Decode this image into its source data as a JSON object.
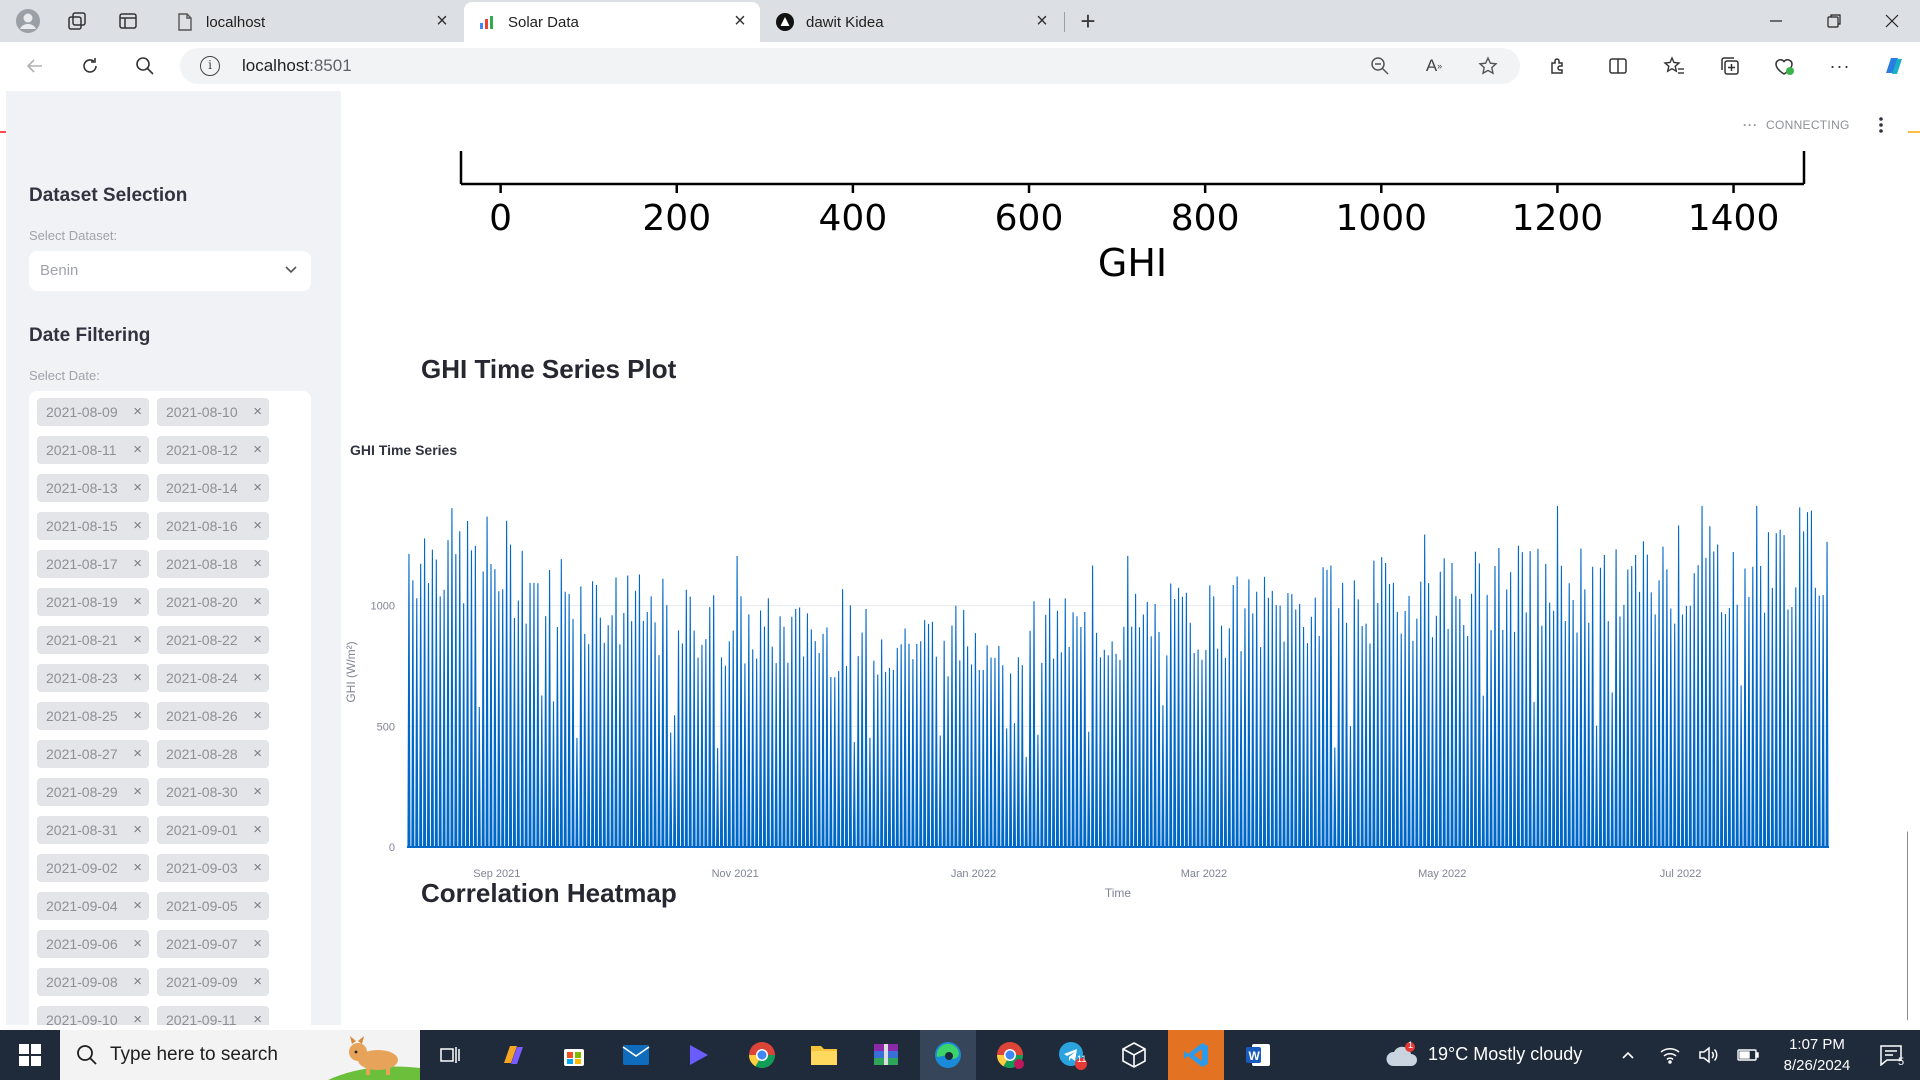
{
  "browser": {
    "tabs": [
      {
        "title": "localhost",
        "icon": "page-icon"
      },
      {
        "title": "Solar Data",
        "icon": "chart-favicon-icon"
      },
      {
        "title": "dawit Kidea",
        "icon": "app-favicon-icon"
      }
    ],
    "url_host": "localhost",
    "url_port": ":8501"
  },
  "sidebar": {
    "dataset_heading": "Dataset Selection",
    "dataset_label": "Select Dataset:",
    "dataset_value": "Benin",
    "date_heading": "Date Filtering",
    "date_label": "Select Date:",
    "dates": [
      "2021-08-09",
      "2021-08-10",
      "2021-08-11",
      "2021-08-12",
      "2021-08-13",
      "2021-08-14",
      "2021-08-15",
      "2021-08-16",
      "2021-08-17",
      "2021-08-18",
      "2021-08-19",
      "2021-08-20",
      "2021-08-21",
      "2021-08-22",
      "2021-08-23",
      "2021-08-24",
      "2021-08-25",
      "2021-08-26",
      "2021-08-27",
      "2021-08-28",
      "2021-08-29",
      "2021-08-30",
      "2021-08-31",
      "2021-09-01",
      "2021-09-02",
      "2021-09-03",
      "2021-09-04",
      "2021-09-05",
      "2021-09-06",
      "2021-09-07",
      "2021-09-08",
      "2021-09-09",
      "2021-09-10",
      "2021-09-11"
    ],
    "chip_remove": "×"
  },
  "main": {
    "status_text": "CONNECTING",
    "time_series_heading": "GHI Time Series Plot",
    "heatmap_heading": "Correlation Heatmap"
  },
  "chart_data": [
    {
      "type": "histogram-axis",
      "xlabel": "GHI",
      "ticks": [
        0,
        200,
        400,
        600,
        800,
        1000,
        1200,
        1400
      ],
      "xlim": [
        -45,
        1480
      ]
    },
    {
      "type": "line",
      "title": "GHI Time Series",
      "xlabel": "Time",
      "ylabel": "GHI (W/m²)",
      "ylim": [
        0,
        1450
      ],
      "yticks": [
        0,
        500,
        1000
      ],
      "xticks": [
        "Sep 2021",
        "Nov 2021",
        "Jan 2022",
        "Mar 2022",
        "May 2022",
        "Jul 2022"
      ],
      "x_range": [
        "2021-08-09",
        "2022-08-08"
      ],
      "color": "#0068c9",
      "daily_peak_profile": [
        {
          "x": "2021-08-09",
          "y": 1250
        },
        {
          "x": "2021-09-01",
          "y": 1200
        },
        {
          "x": "2021-10-01",
          "y": 1000
        },
        {
          "x": "2021-11-01",
          "y": 920
        },
        {
          "x": "2021-12-01",
          "y": 870
        },
        {
          "x": "2022-01-01",
          "y": 880
        },
        {
          "x": "2022-02-01",
          "y": 920
        },
        {
          "x": "2022-03-01",
          "y": 970
        },
        {
          "x": "2022-04-01",
          "y": 1020
        },
        {
          "x": "2022-05-01",
          "y": 1080
        },
        {
          "x": "2022-06-01",
          "y": 1100
        },
        {
          "x": "2022-07-01",
          "y": 1150
        },
        {
          "x": "2022-08-08",
          "y": 1250
        }
      ],
      "max_value": 1413
    }
  ],
  "taskbar": {
    "search_placeholder": "Type here to search",
    "weather": "19°C  Mostly cloudy",
    "time": "1:07 PM",
    "date": "8/26/2024",
    "notifications": "5",
    "weather_badge": "1",
    "telegram_badge": "11"
  }
}
